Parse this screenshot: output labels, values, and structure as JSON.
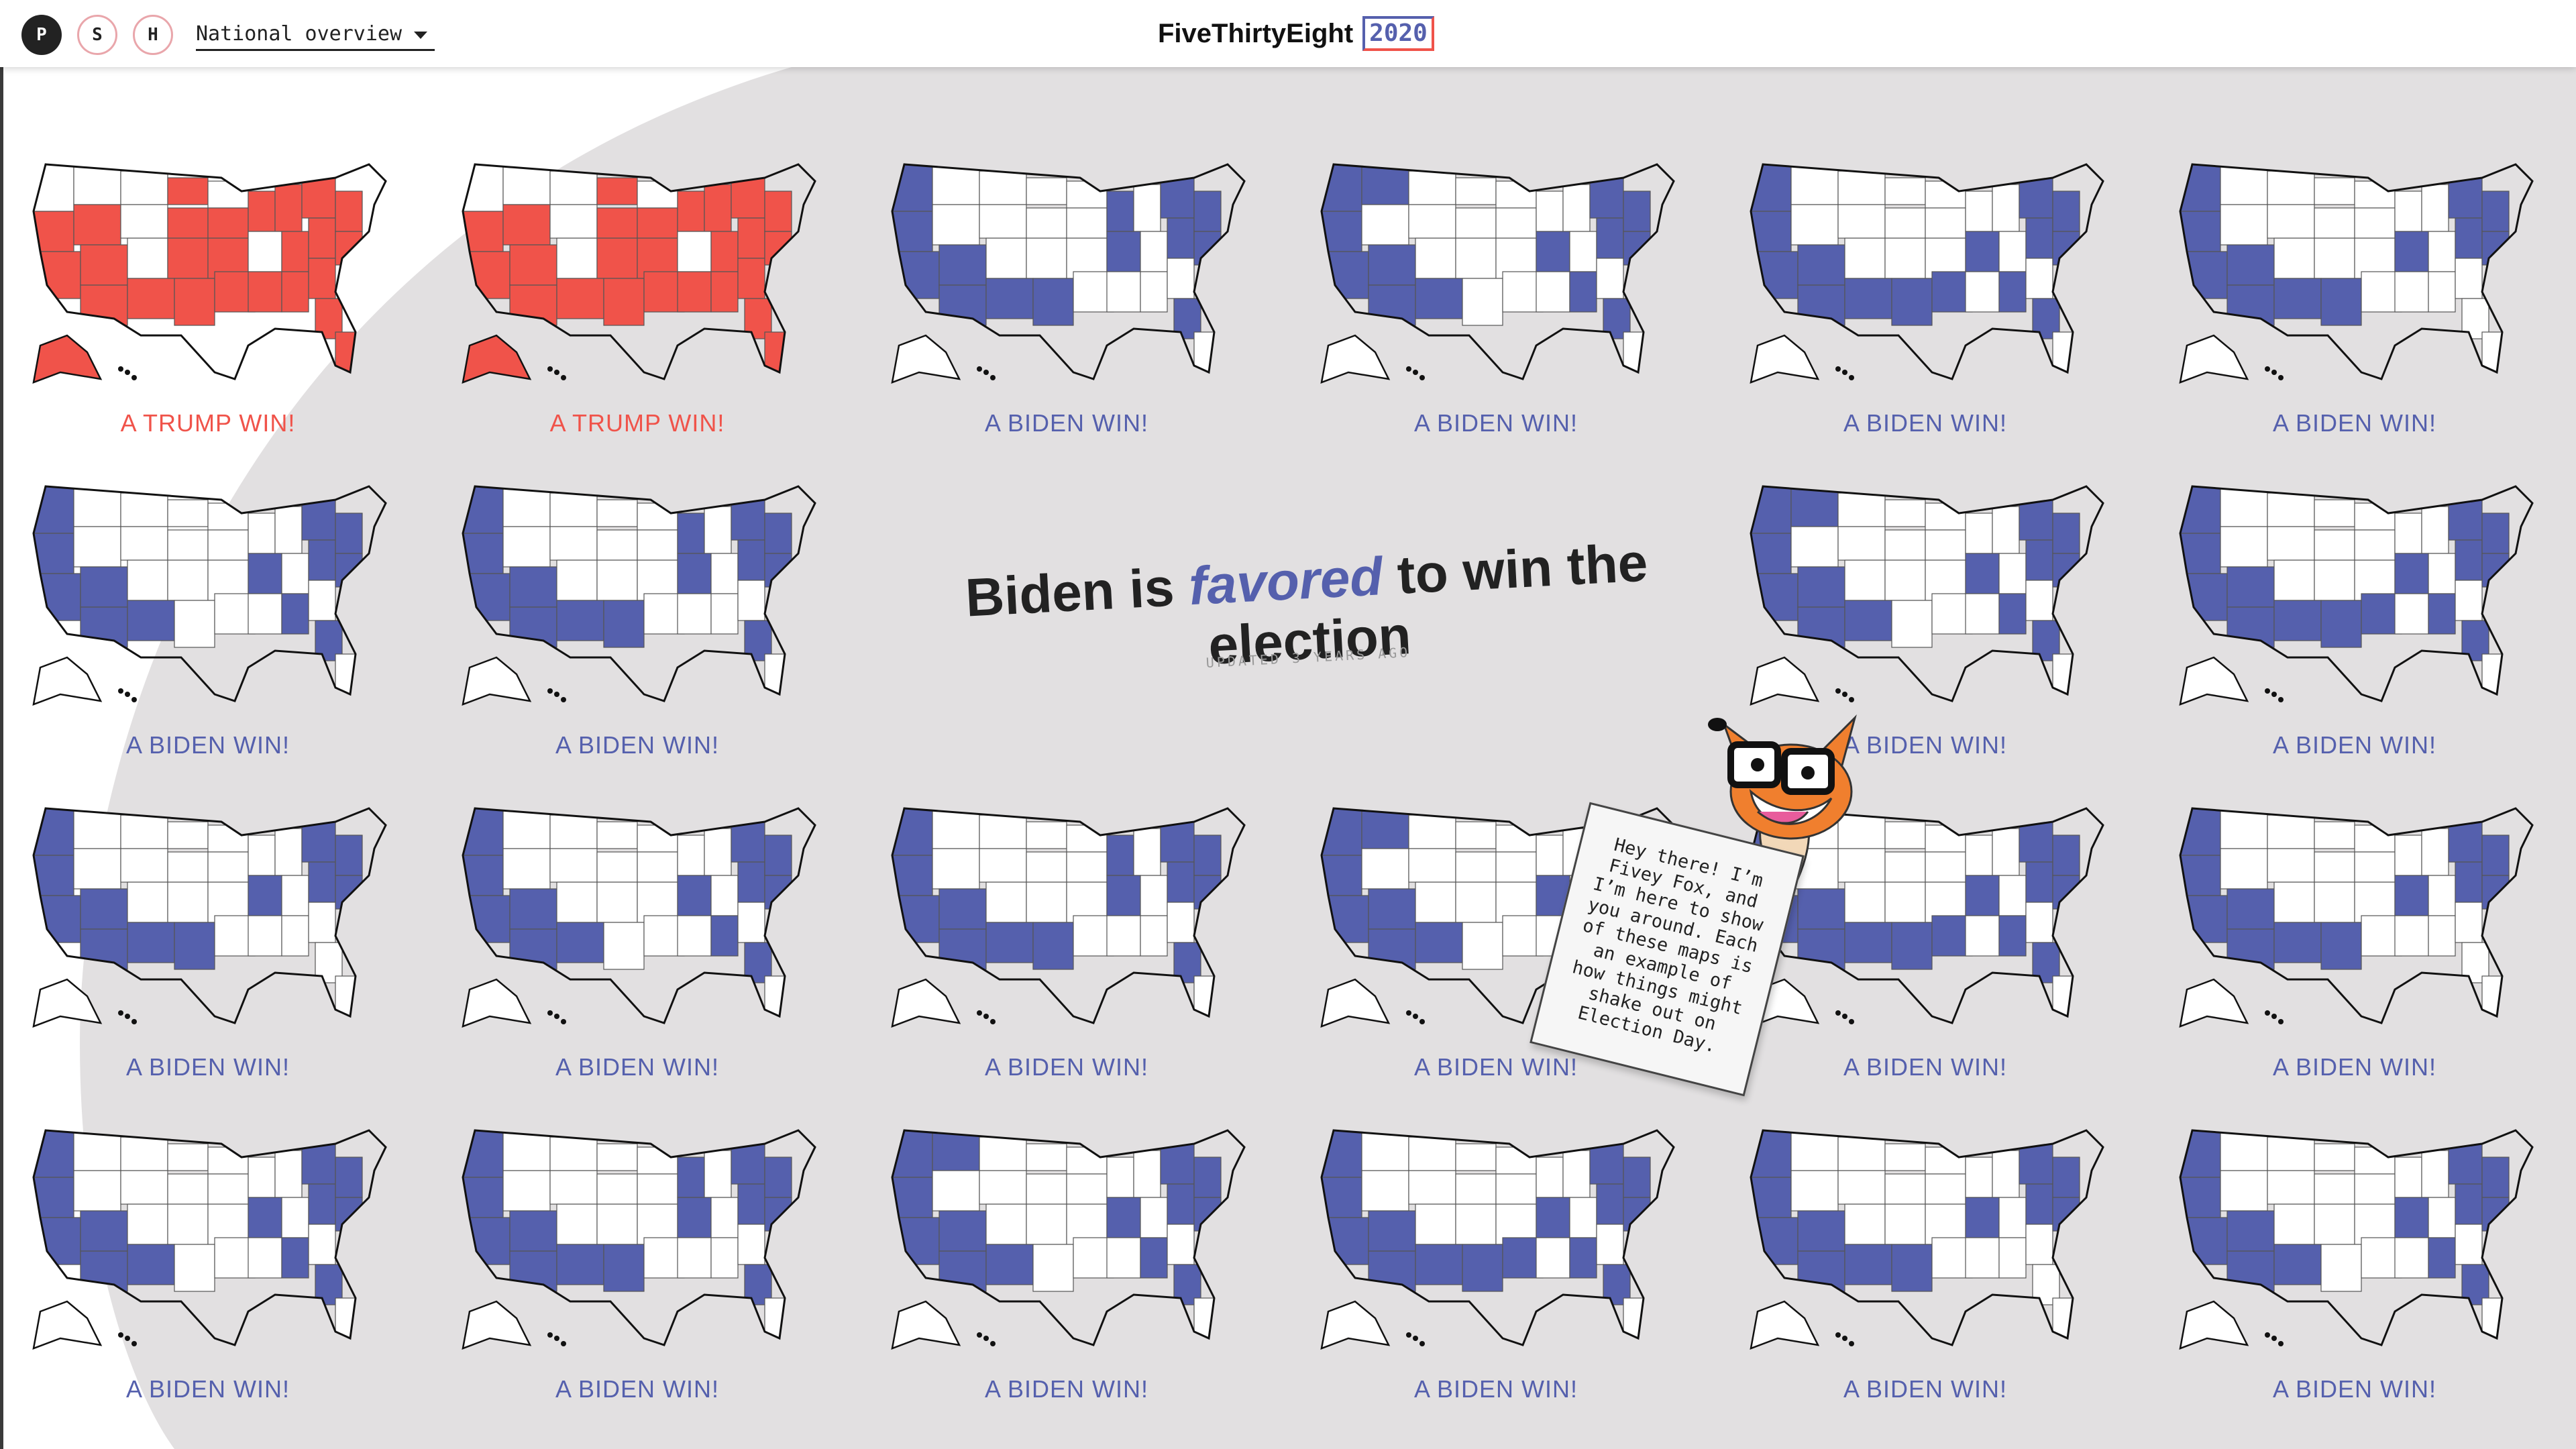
{
  "topbar": {
    "buttons": [
      {
        "label": "P",
        "active": true
      },
      {
        "label": "S",
        "active": false
      },
      {
        "label": "H",
        "active": false
      }
    ],
    "nav_select": "National overview",
    "brand_name": "FiveThirtyEight",
    "brand_year": "2020"
  },
  "colors": {
    "biden": "#5560ad",
    "trump": "#f0534a",
    "state_empty": "#ffffff",
    "background": "#e2e0e1"
  },
  "headline": {
    "part1": "Biden is",
    "favored": "favored",
    "part2": "to win the election",
    "updated": "UPDATED 3 YEARS AGO"
  },
  "fox_note": "Hey there! I’m Fivey Fox, and I’m here to show you around. Each of these maps is an example of how things might shake out on Election Day.",
  "maps": [
    {
      "winner": "trump",
      "label": "A TRUMP WIN!"
    },
    {
      "winner": "trump",
      "label": "A TRUMP WIN!"
    },
    {
      "winner": "biden",
      "label": "A BIDEN WIN!"
    },
    {
      "winner": "biden",
      "label": "A BIDEN WIN!"
    },
    {
      "winner": "biden",
      "label": "A BIDEN WIN!"
    },
    {
      "winner": "biden",
      "label": "A BIDEN WIN!"
    },
    {
      "winner": "biden",
      "label": "A BIDEN WIN!"
    },
    {
      "winner": "biden",
      "label": "A BIDEN WIN!"
    },
    {
      "winner": "biden",
      "label": "A BIDEN WIN!"
    },
    {
      "winner": "biden",
      "label": "A BIDEN WIN!"
    },
    {
      "winner": "biden",
      "label": "A BIDEN WIN!"
    },
    {
      "winner": "biden",
      "label": "A BIDEN WIN!"
    },
    {
      "winner": "biden",
      "label": "A BIDEN WIN!"
    },
    {
      "winner": "biden",
      "label": "A BIDEN WIN!"
    },
    {
      "winner": "biden",
      "label": "A BIDEN WIN!"
    },
    {
      "winner": "biden",
      "label": "A BIDEN WIN!"
    },
    {
      "winner": "biden",
      "label": "A BIDEN WIN!"
    },
    {
      "winner": "biden",
      "label": "A BIDEN WIN!"
    },
    {
      "winner": "biden",
      "label": "A BIDEN WIN!"
    },
    {
      "winner": "biden",
      "label": "A BIDEN WIN!"
    },
    {
      "winner": "biden",
      "label": "A BIDEN WIN!"
    },
    {
      "winner": "biden",
      "label": "A BIDEN WIN!"
    }
  ]
}
